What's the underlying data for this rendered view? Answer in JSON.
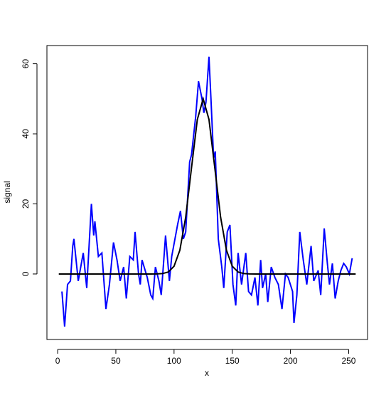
{
  "chart_data": {
    "type": "line",
    "xlabel": "x",
    "ylabel": "signal",
    "xlim": [
      -9.2,
      266.2
    ],
    "ylim": [
      -18.7,
      65.2
    ],
    "xticks": [
      0,
      50,
      100,
      150,
      200,
      250
    ],
    "yticks": [
      0,
      20,
      40,
      60
    ],
    "series": [
      {
        "color": "#0000ff",
        "x": [
          3.7,
          6,
          8.5,
          11,
          13,
          14,
          17.7,
          22,
          25,
          29,
          31,
          32,
          35,
          38,
          41.5,
          44.5,
          48,
          51,
          53.7,
          56.7,
          59,
          62,
          65,
          66.5,
          69.5,
          71,
          72.5,
          77,
          80,
          81.7,
          84,
          87,
          89,
          92.7,
          96,
          98,
          103,
          105.5,
          108,
          110,
          113.4,
          115,
          118.6,
          121,
          124,
          125.6,
          127.4,
          130,
          131.7,
          134,
          135.4,
          138,
          141,
          142.7,
          145.7,
          148,
          150.6,
          153,
          155,
          158,
          161.6,
          164,
          166.5,
          169.5,
          172,
          174.4,
          176,
          178.7,
          180.5,
          183.5,
          186.6,
          189.6,
          192.7,
          195.7,
          198,
          201.8,
          203,
          205.5,
          208,
          211,
          214,
          217.7,
          220,
          223.8,
          226,
          229,
          231.7,
          233.5,
          236,
          238.4,
          241,
          243.3,
          245.7,
          248,
          250.6,
          253
        ],
        "values": [
          -5,
          -15,
          -3,
          -2,
          8,
          10,
          -2,
          6,
          -4,
          20,
          11,
          15,
          5,
          6,
          -10,
          -3,
          9,
          4,
          -2,
          2,
          -7,
          5,
          4,
          12,
          0,
          -3,
          4,
          -1,
          -6,
          -7,
          2,
          -2,
          -6,
          11,
          -2,
          5,
          14,
          18,
          10,
          12,
          32,
          34,
          45,
          55,
          50,
          46,
          49,
          62,
          50,
          33,
          35,
          10,
          2,
          -4,
          12,
          14,
          -3,
          -9,
          6,
          -3,
          6,
          -5,
          -6,
          -1,
          -9,
          4,
          -4,
          0,
          -8,
          2,
          -1,
          -3,
          -10,
          0,
          -1,
          -5,
          -14,
          -6,
          12,
          4,
          -3,
          8,
          -2,
          1,
          -6,
          13,
          3,
          -3,
          3,
          -7,
          -2,
          1,
          3,
          2,
          0,
          4.5
        ]
      },
      {
        "color": "#000000",
        "x": [
          1,
          10,
          20,
          30,
          40,
          50,
          60,
          70,
          80,
          85,
          90,
          95,
          100,
          105,
          110,
          115,
          120,
          125,
          130,
          135,
          140,
          145,
          150,
          155,
          160,
          165,
          170,
          180,
          190,
          200,
          210,
          220,
          230,
          240,
          256
        ],
        "values": [
          0,
          0,
          0,
          0,
          0,
          0,
          0,
          0,
          0,
          0.02,
          0.11,
          0.56,
          2.2,
          6.8,
          16.2,
          30.3,
          44.1,
          50,
          44.1,
          30.3,
          16.2,
          6.8,
          2.2,
          0.56,
          0.11,
          0.02,
          0,
          0,
          0,
          0,
          0,
          0,
          0,
          0,
          0
        ]
      }
    ]
  }
}
